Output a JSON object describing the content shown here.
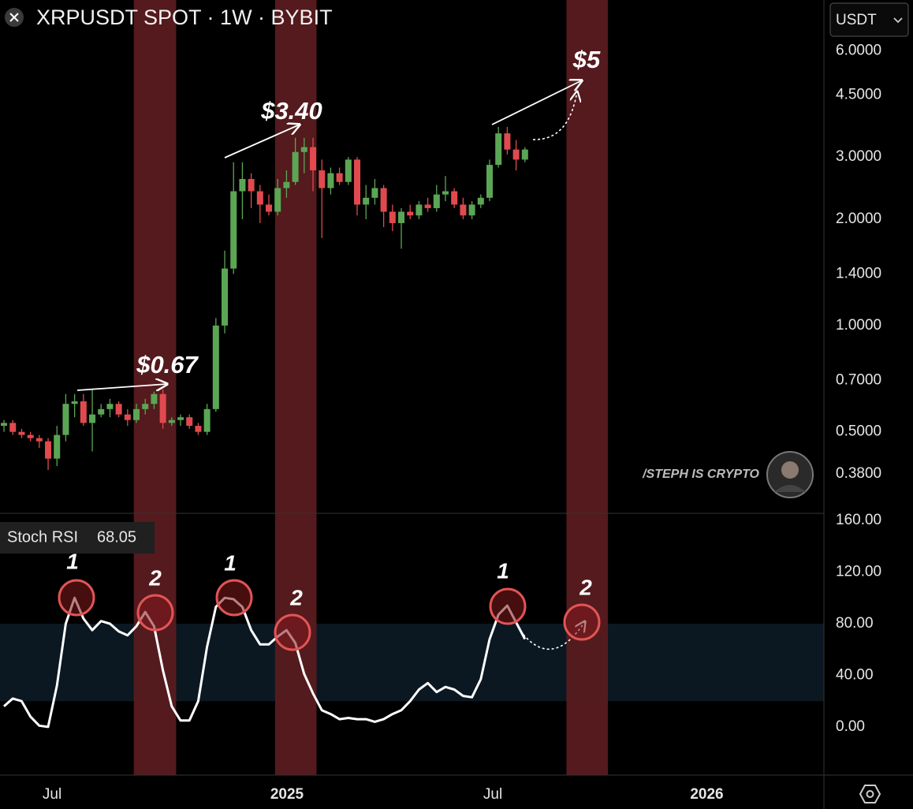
{
  "chart_data": [
    {
      "type": "candlestick",
      "title": "XRPUSDT SPOT · 1W · BYBIT",
      "log_scale": true,
      "up_color": "#5ba655",
      "down_color": "#e04a4f",
      "x": [
        0,
        1,
        2,
        3,
        4,
        5,
        6,
        7,
        8,
        9,
        10,
        11,
        12,
        13,
        14,
        15,
        16,
        17,
        18,
        19,
        20,
        21,
        22,
        23,
        24,
        25,
        26,
        27,
        28,
        29,
        30,
        31,
        32,
        33,
        34,
        35,
        36,
        37,
        38,
        39,
        40,
        41,
        42,
        43,
        44,
        45,
        46,
        47,
        48,
        49,
        50,
        51,
        52,
        53,
        54,
        55,
        56,
        57,
        58,
        59
      ],
      "open": [
        0.52,
        0.53,
        0.5,
        0.49,
        0.48,
        0.47,
        0.42,
        0.49,
        0.6,
        0.61,
        0.53,
        0.56,
        0.58,
        0.6,
        0.56,
        0.54,
        0.58,
        0.6,
        0.64,
        0.53,
        0.54,
        0.55,
        0.52,
        0.5,
        0.58,
        1.0,
        1.45,
        2.4,
        2.6,
        2.4,
        2.2,
        2.1,
        2.45,
        2.55,
        3.1,
        3.2,
        2.75,
        2.45,
        2.7,
        2.55,
        2.95,
        2.2,
        2.3,
        2.45,
        2.1,
        1.95,
        2.1,
        2.05,
        2.2,
        2.15,
        2.35,
        2.4,
        2.2,
        2.05,
        2.2,
        2.3,
        2.85,
        3.5,
        3.15,
        2.95
      ],
      "high": [
        0.54,
        0.54,
        0.51,
        0.5,
        0.49,
        0.48,
        0.52,
        0.64,
        0.64,
        0.64,
        0.66,
        0.6,
        0.62,
        0.61,
        0.58,
        0.6,
        0.62,
        0.65,
        0.66,
        0.55,
        0.56,
        0.56,
        0.53,
        0.6,
        1.05,
        1.63,
        2.9,
        2.9,
        2.7,
        2.5,
        2.35,
        2.6,
        2.75,
        3.4,
        3.4,
        3.4,
        2.95,
        2.8,
        2.8,
        3.0,
        3.0,
        2.5,
        2.6,
        2.5,
        2.2,
        2.15,
        2.2,
        2.25,
        2.3,
        2.5,
        2.65,
        2.45,
        2.3,
        2.25,
        2.35,
        2.95,
        3.65,
        3.65,
        3.35,
        3.2
      ],
      "low": [
        0.5,
        0.49,
        0.48,
        0.47,
        0.45,
        0.39,
        0.4,
        0.47,
        0.55,
        0.52,
        0.44,
        0.55,
        0.55,
        0.55,
        0.52,
        0.53,
        0.56,
        0.58,
        0.51,
        0.52,
        0.52,
        0.51,
        0.49,
        0.49,
        0.57,
        0.95,
        1.4,
        2.0,
        2.15,
        1.95,
        2.05,
        2.05,
        2.3,
        2.5,
        2.7,
        2.4,
        1.77,
        2.35,
        2.5,
        2.5,
        2.05,
        2.0,
        2.2,
        1.9,
        1.85,
        1.65,
        2.0,
        2.0,
        2.1,
        2.1,
        2.25,
        2.15,
        2.0,
        2.0,
        2.15,
        2.25,
        2.8,
        3.05,
        2.75,
        2.9
      ],
      "close": [
        0.53,
        0.5,
        0.49,
        0.48,
        0.47,
        0.42,
        0.49,
        0.6,
        0.61,
        0.53,
        0.56,
        0.58,
        0.6,
        0.56,
        0.54,
        0.58,
        0.6,
        0.64,
        0.53,
        0.54,
        0.55,
        0.52,
        0.5,
        0.58,
        1.0,
        1.45,
        2.4,
        2.6,
        2.4,
        2.2,
        2.1,
        2.45,
        2.55,
        3.1,
        3.2,
        2.75,
        2.45,
        2.7,
        2.55,
        2.95,
        2.2,
        2.3,
        2.45,
        2.1,
        1.95,
        2.1,
        2.05,
        2.2,
        2.15,
        2.35,
        2.4,
        2.2,
        2.05,
        2.2,
        2.3,
        2.85,
        3.5,
        3.15,
        2.95,
        3.15
      ],
      "xlim": [
        -0.45,
        92.86
      ],
      "ylim": [
        0.294,
        8.35
      ],
      "yticks": [
        {
          "value": 6,
          "label": "6.0000"
        },
        {
          "value": 4.5,
          "label": "4.5000"
        },
        {
          "value": 3,
          "label": "3.0000"
        },
        {
          "value": 2,
          "label": "2.0000"
        },
        {
          "value": 1.4,
          "label": "1.4000"
        },
        {
          "value": 1,
          "label": "1.0000"
        },
        {
          "value": 0.7,
          "label": "0.7000"
        },
        {
          "value": 0.5,
          "label": "0.5000"
        },
        {
          "value": 0.38,
          "label": "0.3800"
        }
      ],
      "annotations": [
        "$0.67",
        "$3.40",
        "$5"
      ]
    },
    {
      "type": "line",
      "x": [
        0,
        1,
        2,
        3,
        4,
        5,
        6,
        7,
        8,
        9,
        10,
        11,
        12,
        13,
        14,
        15,
        16,
        17,
        18,
        19,
        20,
        21,
        22,
        23,
        24,
        25,
        26,
        27,
        28,
        29,
        30,
        31,
        32,
        33,
        34,
        35,
        36,
        37,
        38,
        39,
        40,
        41,
        42,
        43,
        44,
        45,
        46,
        47,
        48,
        49,
        50,
        51,
        52,
        53,
        54,
        55,
        56,
        57,
        58,
        59
      ],
      "series": [
        {
          "name": "Stoch RSI",
          "color": "#ffffff",
          "values": [
            16,
            22,
            20,
            8,
            1,
            0,
            32,
            80,
            100,
            84,
            75,
            82,
            80,
            74,
            71,
            78,
            89,
            78,
            44,
            16,
            5,
            5,
            20,
            62,
            93,
            100,
            99,
            93,
            75,
            64,
            64,
            70,
            75,
            65,
            41,
            26,
            13,
            10,
            6,
            7,
            6,
            6,
            4,
            6,
            10,
            13,
            20,
            29,
            34,
            27,
            31,
            29,
            24,
            23,
            37,
            68,
            87,
            94,
            81,
            68.05
          ]
        }
      ],
      "band": [
        20,
        80
      ],
      "band_color": "#0b1822",
      "xlim": [
        -0.45,
        92.86
      ],
      "ylim": [
        -37.3,
        165.5
      ],
      "yticks": [
        {
          "value": 160,
          "label": "160.00"
        },
        {
          "value": 120,
          "label": "120.00"
        },
        {
          "value": 80,
          "label": "80.00"
        },
        {
          "value": 40,
          "label": "40.00"
        },
        {
          "value": 0,
          "label": "0.00"
        }
      ],
      "xticks": [
        {
          "value": 5.45,
          "label": "Jul"
        },
        {
          "value": 32.05,
          "label": "2025"
        },
        {
          "value": 55.36,
          "label": "Jul"
        },
        {
          "value": 79.6,
          "label": "2026"
        }
      ],
      "annotations": [
        "1",
        "2",
        "1",
        "2",
        "1",
        "2"
      ]
    }
  ],
  "highlight_bands": [
    [
      14.7,
      19.5
    ],
    [
      30.7,
      35.4
    ],
    [
      63.7,
      68.4
    ]
  ],
  "highlight_color": "#5b1c20",
  "unit_selector": "USDT",
  "watermark": "/STEPH IS CRYPTO"
}
